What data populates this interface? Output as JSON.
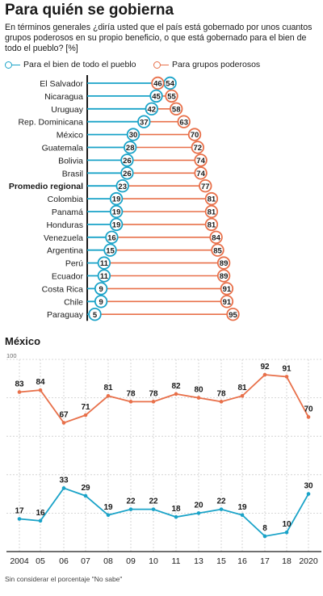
{
  "header": {
    "title": "Para quién se gobierna",
    "subtitle": "En términos generales ¿diría usted que el país está gobernado por unos cuantos grupos poderosos en su propio beneficio, o que está gobernado para el bien de todo el pueblo? [%]"
  },
  "legend": {
    "pueblo": "Para el bien de todo el pueblo",
    "grupos": "Para grupos poderosos"
  },
  "colors": {
    "pueblo": "#1aa3c8",
    "grupos": "#e8704a",
    "axis": "#1a1a1a",
    "grid": "#cccccc"
  },
  "chart_data": [
    {
      "type": "dumbbell",
      "categories": [
        "El Salvador",
        "Nicaragua",
        "Uruguay",
        "Rep. Dominicana",
        "México",
        "Guatemala",
        "Bolivia",
        "Brasil",
        "Promedio regional",
        "Colombia",
        "Panamá",
        "Honduras",
        "Venezuela",
        "Argentina",
        "Perú",
        "Ecuador",
        "Costa Rica",
        "Chile",
        "Paraguay"
      ],
      "highlight": "Promedio regional",
      "series": [
        {
          "name": "Para el bien de todo el pueblo",
          "values": [
            54,
            45,
            42,
            37,
            30,
            28,
            26,
            26,
            23,
            19,
            19,
            19,
            16,
            15,
            11,
            11,
            9,
            9,
            5
          ]
        },
        {
          "name": "Para grupos poderosos",
          "values": [
            46,
            55,
            58,
            63,
            70,
            72,
            74,
            74,
            77,
            81,
            81,
            81,
            84,
            85,
            89,
            89,
            91,
            91,
            95
          ]
        }
      ]
    },
    {
      "type": "line",
      "title": "México",
      "x": [
        "2004",
        "05",
        "06",
        "07",
        "08",
        "09",
        "10",
        "11",
        "13",
        "15",
        "16",
        "17",
        "18",
        "2020"
      ],
      "ylim": [
        0,
        100
      ],
      "ytick_labels": [
        "100"
      ],
      "grid": true,
      "series": [
        {
          "name": "Para grupos poderosos",
          "values": [
            83,
            84,
            67,
            71,
            81,
            78,
            78,
            82,
            80,
            78,
            81,
            92,
            91,
            70
          ]
        },
        {
          "name": "Para el bien de todo el pueblo",
          "values": [
            17,
            16,
            33,
            29,
            19,
            22,
            22,
            18,
            20,
            22,
            19,
            8,
            10,
            30
          ]
        }
      ]
    }
  ],
  "footnote": "Sin considerar el porcentaje \"No sabe\""
}
